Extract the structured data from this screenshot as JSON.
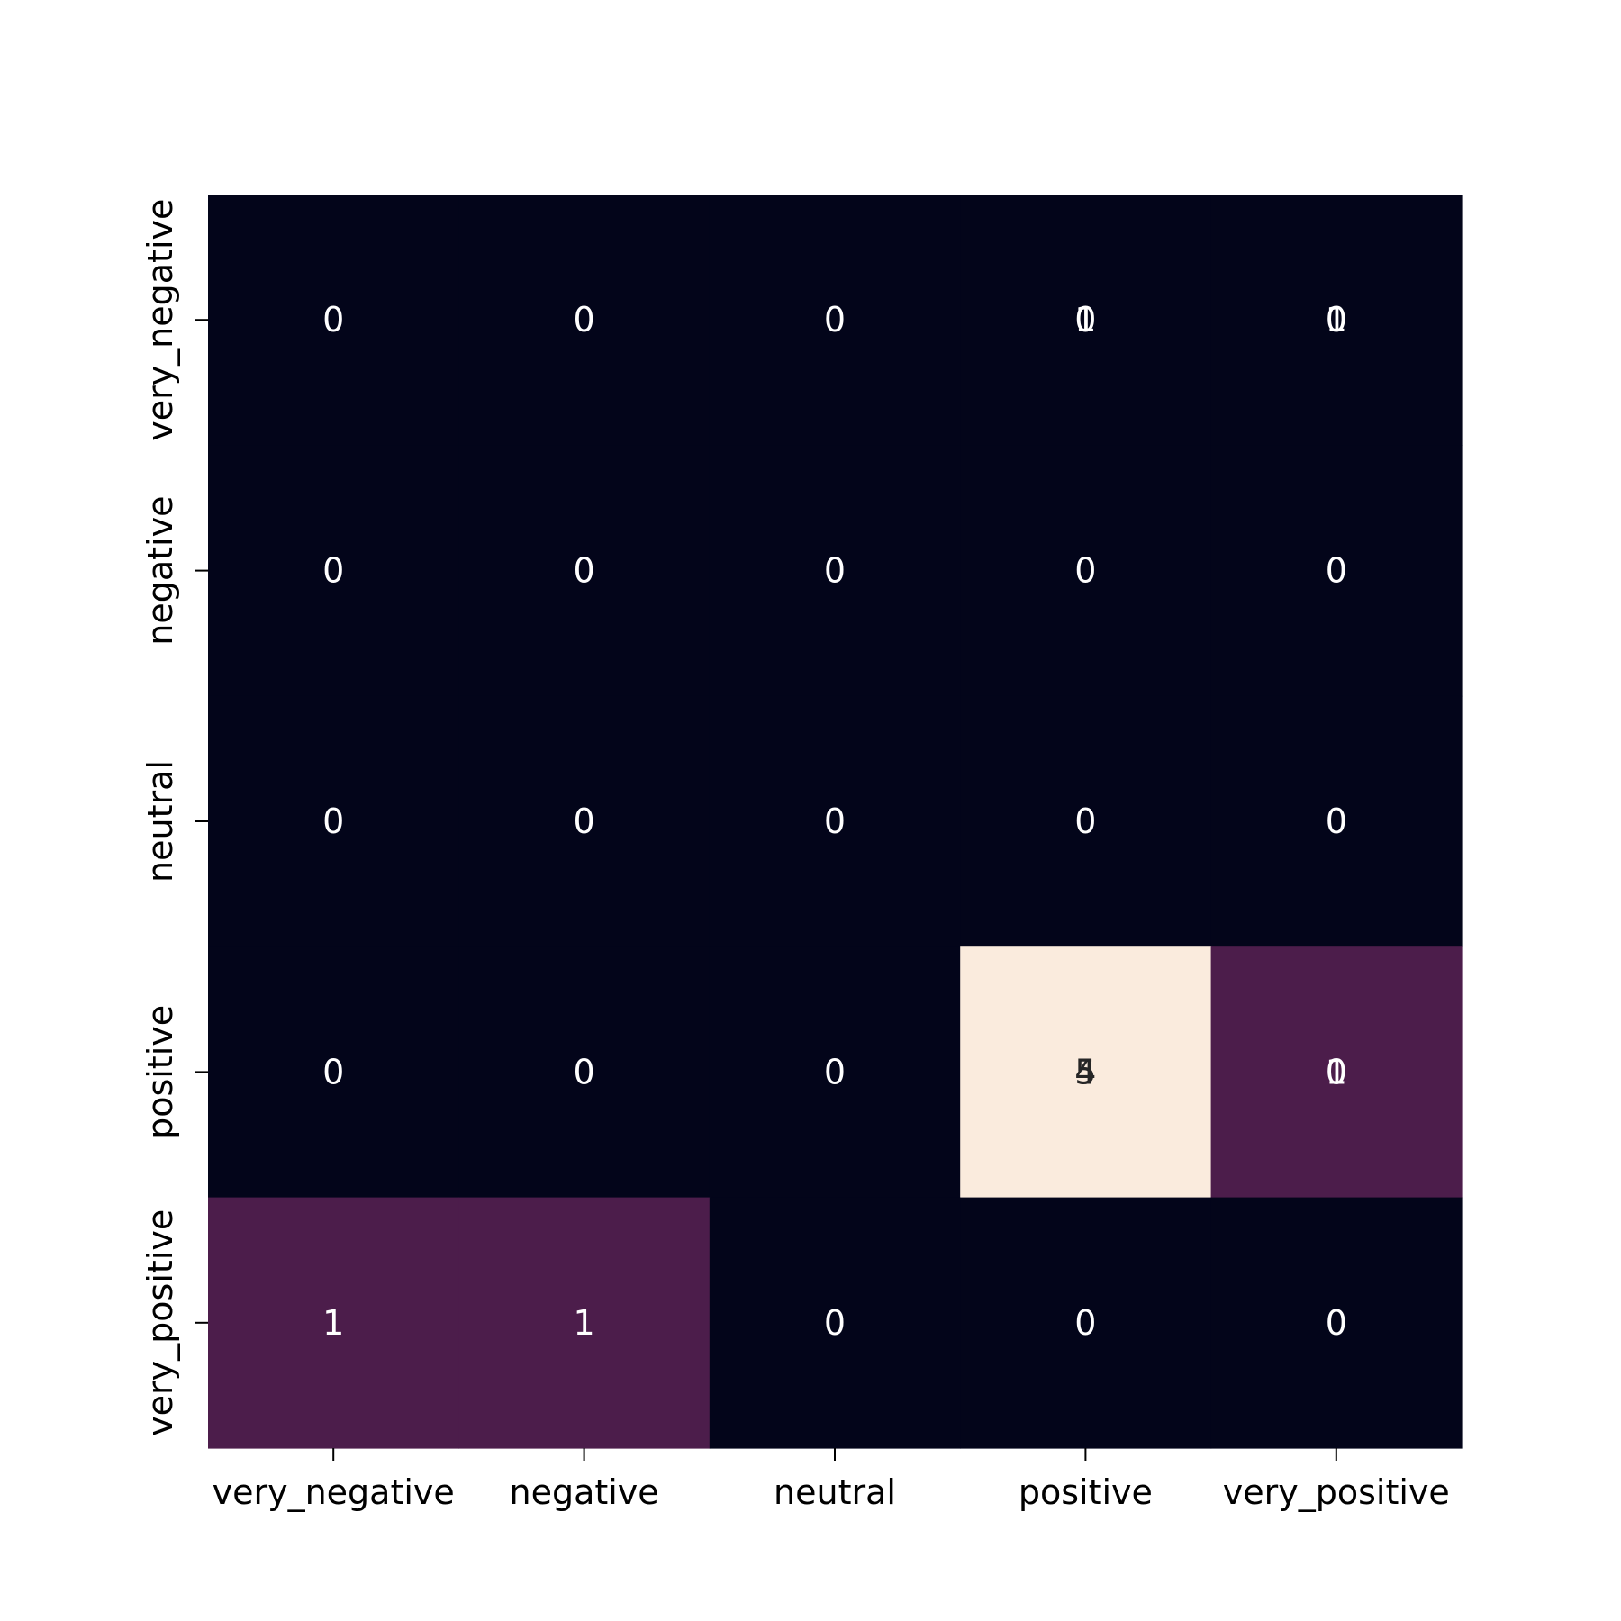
{
  "chart_data": {
    "type": "heatmap",
    "row_labels": [
      "very_negative",
      "negative",
      "neutral",
      "positive",
      "very_positive"
    ],
    "col_labels": [
      "very_negative",
      "negative",
      "neutral",
      "positive",
      "very_positive"
    ],
    "values": [
      [
        0,
        0,
        0,
        0,
        0
      ],
      [
        0,
        0,
        0,
        0,
        0
      ],
      [
        0,
        0,
        0,
        0,
        0
      ],
      [
        0,
        0,
        0,
        5,
        1
      ],
      [
        1,
        1,
        0,
        0,
        0
      ]
    ],
    "overlaid_labels": [
      [
        [
          "0"
        ],
        [
          "0"
        ],
        [
          "0"
        ],
        [
          "0",
          "1"
        ],
        [
          "0",
          "1"
        ]
      ],
      [
        [
          "0"
        ],
        [
          "0"
        ],
        [
          "0"
        ],
        [
          "0"
        ],
        [
          "0"
        ]
      ],
      [
        [
          "0"
        ],
        [
          "0"
        ],
        [
          "0"
        ],
        [
          "0"
        ],
        [
          "0"
        ]
      ],
      [
        [
          "0"
        ],
        [
          "0"
        ],
        [
          "0"
        ],
        [
          "5",
          "4"
        ],
        [
          "0",
          "1"
        ]
      ],
      [
        [
          "1"
        ],
        [
          "1"
        ],
        [
          "0"
        ],
        [
          "0"
        ],
        [
          "0"
        ]
      ]
    ],
    "vmin": 0,
    "vmax": 5,
    "colormap": "rocket",
    "colors": {
      "low": "#03051a",
      "mid": "#4c1d4b",
      "high": "#faebdd",
      "text_light": "#ffffff",
      "text_dark": "#262626"
    },
    "title": "",
    "xlabel": "",
    "ylabel": "",
    "colorbar": false,
    "grid": false
  }
}
